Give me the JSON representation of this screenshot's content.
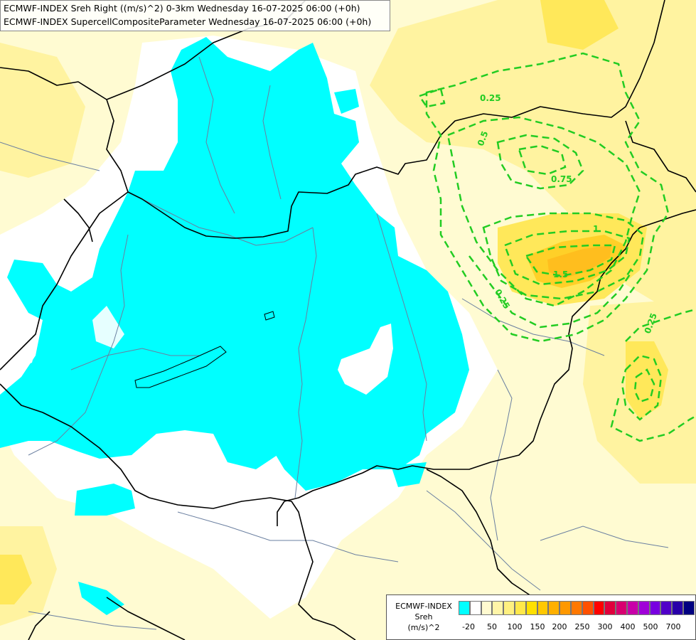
{
  "title": {
    "line1": "ECMWF-INDEX Sreh Right ((m/s)^2) 0-3km Wednesday 16-07-2025 06:00 (+0h)",
    "line2": "ECMWF-INDEX SupercellCompositeParameter Wednesday 16-07-2025 06:00 (+0h)"
  },
  "legend": {
    "title_line1": "ECMWF-INDEX",
    "title_line2": "Sreh",
    "title_line3": "(m/s)^2",
    "colors": [
      "#00ffff",
      "#ffffff",
      "#fffad0",
      "#fff5a8",
      "#fff080",
      "#ffe84a",
      "#ffe000",
      "#ffc800",
      "#ffb000",
      "#ff9800",
      "#ff7800",
      "#ff5000",
      "#ff0000",
      "#e0003c",
      "#d80070",
      "#c800a8",
      "#a000d8",
      "#7800e0",
      "#5000c8",
      "#2800a8",
      "#000080"
    ],
    "ticks": [
      "-20",
      "50",
      "100",
      "150",
      "200",
      "250",
      "300",
      "400",
      "500",
      "700"
    ]
  },
  "contour_labels": [
    "0.25",
    "0.5",
    "0.75",
    "1",
    "1.5",
    "0.25",
    "0.25"
  ],
  "map_colors": {
    "land_low": "#fffbd2",
    "land_mid": "#fff3a0",
    "land_high": "#ffe85a",
    "core_orange": "#ffbe1e",
    "negative": "#00ffff",
    "zero": "#ffffff",
    "contour": "#22cc22",
    "border": "#000000",
    "river": "#6a7fa0"
  }
}
